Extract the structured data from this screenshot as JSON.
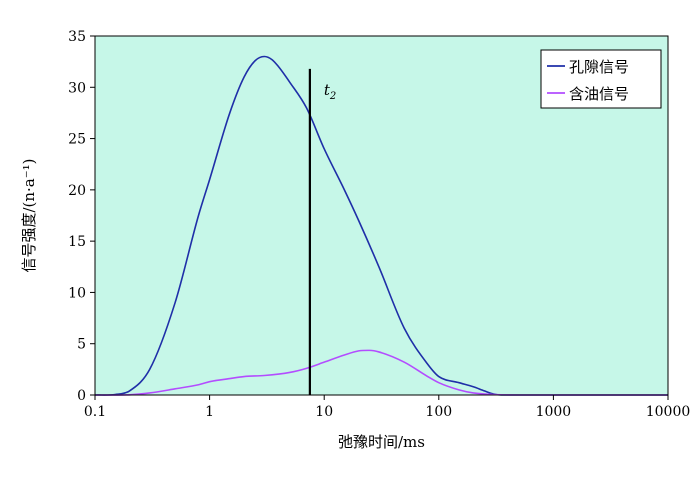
{
  "chart_data": {
    "type": "line",
    "x_scale": "log",
    "xlim": [
      0.1,
      10000
    ],
    "ylim": [
      0,
      35
    ],
    "xlabel": "弛豫时间/ms",
    "ylabel": "信号强度/(n·a⁻¹)",
    "x_tick_labels": [
      "0.1",
      "1",
      "10",
      "100",
      "1000",
      "10000"
    ],
    "x_ticks": [
      0.1,
      1,
      10,
      100,
      1000,
      10000
    ],
    "y_ticks": [
      0,
      5,
      10,
      15,
      20,
      25,
      30,
      35
    ],
    "y_tick_labels": [
      "0",
      "5",
      "10",
      "15",
      "20",
      "25",
      "30",
      "35"
    ],
    "grid": false,
    "background_color": "#c6f7e8",
    "legend_position": "top-right",
    "series": [
      {
        "name": "孔隙信号",
        "color": "#1f2fa8",
        "x": [
          0.1,
          0.15,
          0.2,
          0.3,
          0.5,
          0.8,
          1.0,
          1.5,
          2.0,
          2.5,
          3.0,
          3.5,
          4.0,
          5.0,
          7.0,
          10,
          15,
          20,
          30,
          50,
          80,
          100,
          150,
          200,
          250,
          300,
          350,
          500,
          1000,
          10000
        ],
        "y": [
          0,
          0.05,
          0.4,
          2.5,
          9,
          17.5,
          21,
          27.5,
          31,
          32.6,
          33,
          32.7,
          32,
          30.5,
          28,
          24,
          20,
          17,
          12.5,
          6.5,
          3,
          1.8,
          1.2,
          0.8,
          0.4,
          0.1,
          0,
          0,
          0,
          0
        ]
      },
      {
        "name": "含油信号",
        "color": "#b34dff",
        "x": [
          0.1,
          0.2,
          0.3,
          0.5,
          0.8,
          1.0,
          1.5,
          2.0,
          3.0,
          5.0,
          7.0,
          10,
          15,
          20,
          25,
          30,
          50,
          80,
          100,
          150,
          200,
          300,
          500,
          1000,
          10000
        ],
        "y": [
          0,
          0.02,
          0.2,
          0.6,
          1.0,
          1.3,
          1.6,
          1.8,
          1.9,
          2.2,
          2.6,
          3.2,
          3.9,
          4.3,
          4.35,
          4.2,
          3.2,
          1.8,
          1.2,
          0.5,
          0.2,
          0.05,
          0,
          0,
          0
        ]
      }
    ],
    "marker_line": {
      "x": 7.5,
      "y_top": 31.8,
      "label": "t",
      "label_sub": "2",
      "color": "#000000"
    }
  }
}
